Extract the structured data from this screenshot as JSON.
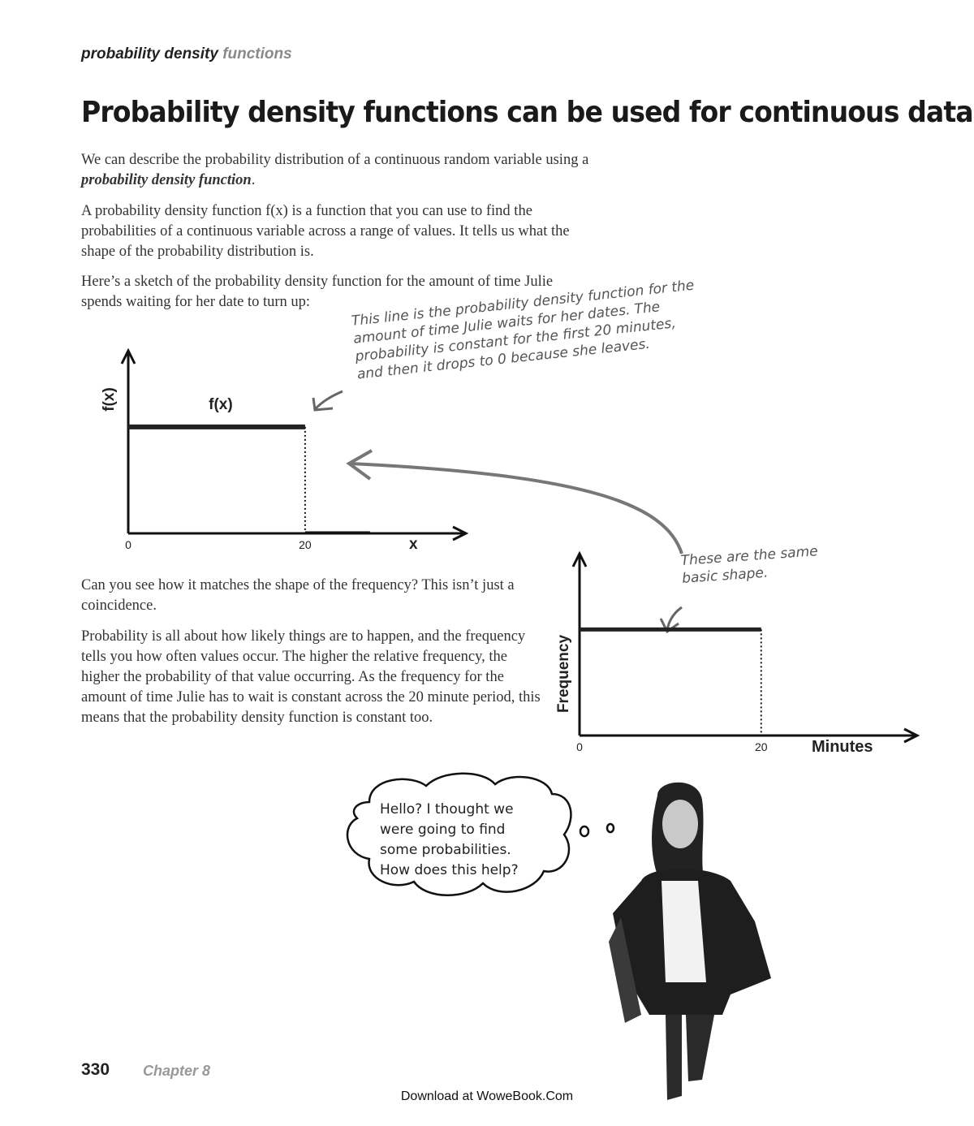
{
  "header": {
    "bold": "probability density",
    "gray": "functions"
  },
  "title": "Probability density functions can be used for continuous data",
  "paragraphs": {
    "p1_pre": "We can describe the probability distribution of a continuous random variable using a ",
    "p1_em": "probability density function",
    "p1_post": ".",
    "p2": "A probability density function f(x) is a function that you can use to find the probabilities of a continuous variable across a range of values. It tells us what the shape of the probability distribution is.",
    "p3": "Here’s a sketch of the probability density function for the amount of time Julie spends waiting for her date to turn up:",
    "p4": "Can you see how it matches the shape of the frequency? This isn’t just a coincidence.",
    "p5": "Probability is all about how likely things are to happen, and the frequency tells you how often values occur. The higher the relative frequency, the higher the probability of that value occurring. As the frequency for the amount of time Julie has to wait is constant across the 20 minute period, this means that the probability density function is constant too."
  },
  "annotations": {
    "pdf_note": "This line is the probability density function for the amount of time Julie waits for her dates. The probability is constant for the first 20 minutes, and then it drops to 0 because she leaves.",
    "shape_note": "These are the same basic shape."
  },
  "thought_bubble": "Hello? I thought we were going to find some probabilities. How does this help?",
  "footer": {
    "page_number": "330",
    "chapter": "Chapter 8",
    "download": "Download at WoweBook.Com"
  },
  "chart_data": [
    {
      "type": "line",
      "ylabel": "f(x)",
      "xlabel": "x",
      "series": [
        {
          "name": "f(x)",
          "x": [
            0,
            20
          ],
          "y": [
            1,
            1
          ]
        }
      ],
      "x_ticks": [
        "0",
        "20"
      ],
      "xlim": [
        0,
        38
      ],
      "ylim": [
        0,
        1.7
      ]
    },
    {
      "type": "line",
      "ylabel": "Frequency",
      "xlabel": "Minutes",
      "series": [
        {
          "x": [
            0,
            20
          ],
          "y": [
            1,
            1
          ]
        }
      ],
      "x_ticks": [
        "0",
        "20"
      ],
      "xlim": [
        0,
        37
      ],
      "ylim": [
        0,
        1.7
      ]
    }
  ]
}
